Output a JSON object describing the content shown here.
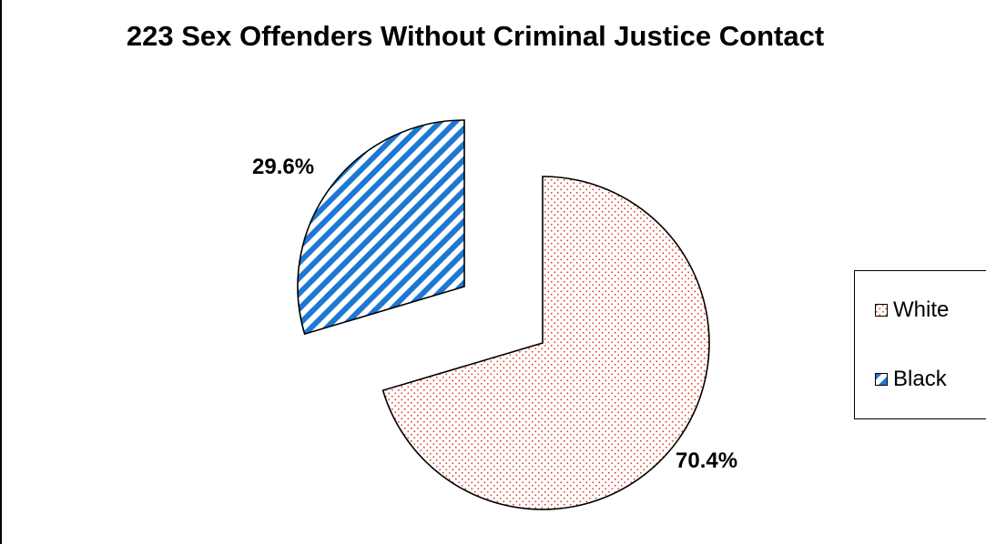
{
  "chart_data": {
    "type": "pie",
    "title": "223 Sex Offenders Without Criminal Justice Contact",
    "slices": [
      {
        "name": "White",
        "value": 70.4,
        "label": "70.4%",
        "color": "#e8341c",
        "pattern": "dotted",
        "exploded": true
      },
      {
        "name": "Black",
        "value": 29.6,
        "label": "29.6%",
        "color": "#1e78d2",
        "pattern": "diagonal-stripes",
        "exploded": true
      }
    ],
    "legend": {
      "placement": "right",
      "entries": [
        "White",
        "Black"
      ]
    }
  }
}
